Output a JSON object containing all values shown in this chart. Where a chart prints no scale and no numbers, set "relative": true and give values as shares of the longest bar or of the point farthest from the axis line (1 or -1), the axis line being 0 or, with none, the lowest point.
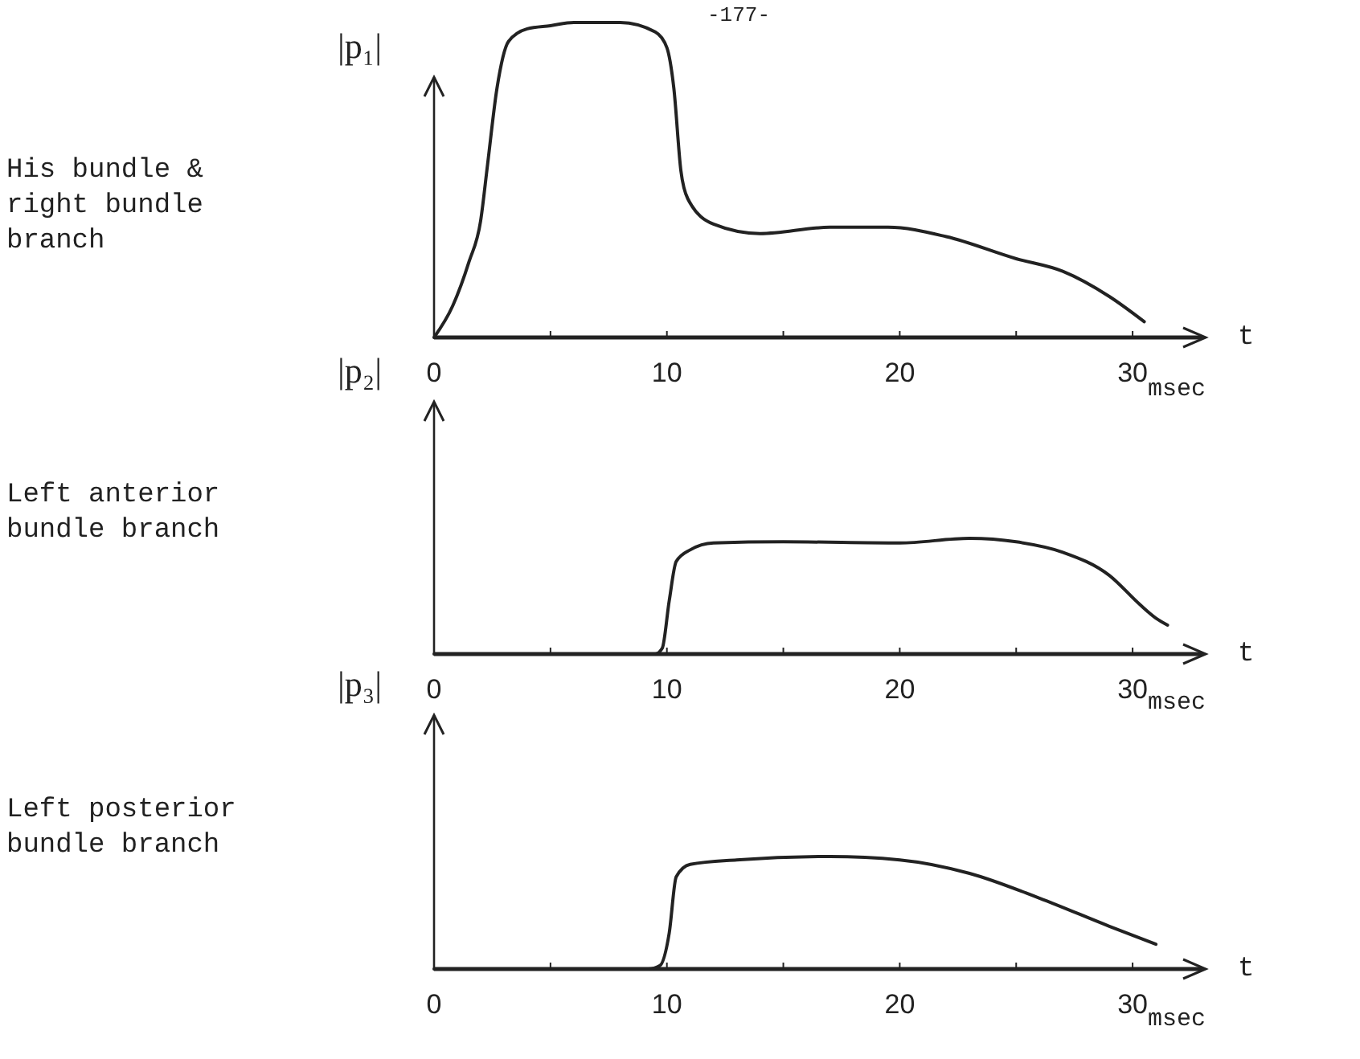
{
  "chart_data": [
    {
      "type": "line",
      "ylabel": "|p₁|",
      "xlabel": "t",
      "relative": true,
      "x": [
        0,
        0.8,
        1.5,
        2,
        2.3,
        2.7,
        3.2,
        4,
        5,
        6,
        8,
        9.5,
        10,
        10.3,
        10.6,
        10.9,
        12,
        14,
        17,
        19.5,
        22,
        25,
        27,
        29,
        30.5
      ],
      "values": [
        0,
        0.1,
        0.24,
        0.37,
        0.55,
        0.79,
        0.94,
        0.98,
        0.99,
        1,
        1,
        0.97,
        0.92,
        0.79,
        0.53,
        0.44,
        0.36,
        0.33,
        0.35,
        0.35,
        0.32,
        0.25,
        0.21,
        0.13,
        0.05
      ],
      "color": "#222222",
      "xlim": [
        0,
        33
      ],
      "xticks": [
        0,
        {
          "value": 5,
          "label": null
        },
        10,
        {
          "value": 15,
          "label": null
        },
        20,
        {
          "value": 25,
          "label": null
        },
        30
      ],
      "annotations": [
        "-177-",
        "His bundle & right bundle branch",
        "msec"
      ]
    },
    {
      "type": "line",
      "ylabel": "|p₂|",
      "xlabel": "t",
      "relative": true,
      "x": [
        0,
        9.5,
        9.8,
        10.1,
        10.4,
        11,
        12,
        15,
        20,
        23,
        25,
        27,
        29,
        30.3,
        31,
        31.5
      ],
      "values": [
        0,
        0,
        0.05,
        0.46,
        0.8,
        0.9,
        0.96,
        0.97,
        0.96,
        1,
        0.97,
        0.88,
        0.68,
        0.43,
        0.31,
        0.25
      ],
      "color": "#222222",
      "xlim": [
        0,
        33
      ],
      "xticks": [
        0,
        {
          "value": 5,
          "label": null
        },
        10,
        {
          "value": 15,
          "label": null
        },
        20,
        {
          "value": 25,
          "label": null
        },
        30
      ],
      "annotations": [
        "Left anterior bundle branch",
        "msec"
      ]
    },
    {
      "type": "line",
      "ylabel": "|p₃|",
      "xlabel": "t",
      "relative": true,
      "x": [
        0,
        9.2,
        9.7,
        10.1,
        10.4,
        11,
        13,
        17,
        20,
        23,
        26,
        29,
        31
      ],
      "values": [
        0,
        0,
        0.03,
        0.32,
        0.82,
        0.93,
        0.97,
        1,
        0.97,
        0.85,
        0.63,
        0.38,
        0.22
      ],
      "color": "#222222",
      "xlim": [
        0,
        33
      ],
      "xticks": [
        0,
        {
          "value": 5,
          "label": null
        },
        10,
        {
          "value": 15,
          "label": null
        },
        20,
        {
          "value": 25,
          "label": null
        },
        30
      ],
      "annotations": [
        "Left posterior bundle branch",
        "msec"
      ]
    }
  ]
}
